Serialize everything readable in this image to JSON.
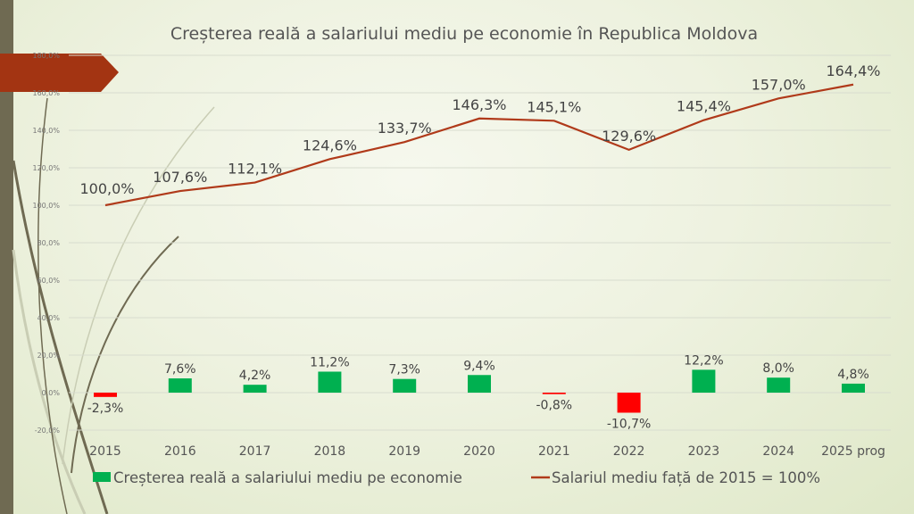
{
  "chart_data": {
    "type": "bar+line",
    "title": "Creșterea reală a salariului mediu pe economie în Republica Moldova",
    "categories": [
      "2015",
      "2016",
      "2017",
      "2018",
      "2019",
      "2020",
      "2021",
      "2022",
      "2023",
      "2024",
      "2025 prog"
    ],
    "series": [
      {
        "name": "Creșterea reală a salariului mediu pe economie",
        "type": "bar",
        "values": [
          -2.3,
          7.6,
          4.2,
          11.2,
          7.3,
          9.4,
          -0.8,
          -10.7,
          12.2,
          8.0,
          4.8
        ],
        "labels": [
          "-2,3%",
          "7,6%",
          "4,2%",
          "11,2%",
          "7,3%",
          "9,4%",
          "-0,8%",
          "-10,7%",
          "12,2%",
          "8,0%",
          "4,8%"
        ]
      },
      {
        "name": "Salariul mediu față de 2015 = 100%",
        "type": "line",
        "values": [
          100.0,
          107.6,
          112.1,
          124.6,
          133.7,
          146.3,
          145.1,
          129.6,
          145.4,
          157.0,
          164.4
        ],
        "labels": [
          "100,0%",
          "107,6%",
          "112,1%",
          "124,6%",
          "133,7%",
          "146,3%",
          "145,1%",
          "129,6%",
          "145,4%",
          "157,0%",
          "164,4%"
        ]
      }
    ],
    "ylim": [
      -20,
      180
    ],
    "yticks": [
      -20,
      0,
      20,
      40,
      60,
      80,
      100,
      120,
      140,
      160,
      180
    ],
    "ytick_labels": [
      "-20,0%",
      "0,0%",
      "20,0%",
      "40,0%",
      "60,0%",
      "80,0%",
      "100,0%",
      "120,0%",
      "140,0%",
      "160,0%",
      "180,0%"
    ],
    "grid": true,
    "legend": "bottom",
    "colors": {
      "positive": "#00b050",
      "negative": "#ff0000",
      "line": "#b03a1a"
    }
  }
}
